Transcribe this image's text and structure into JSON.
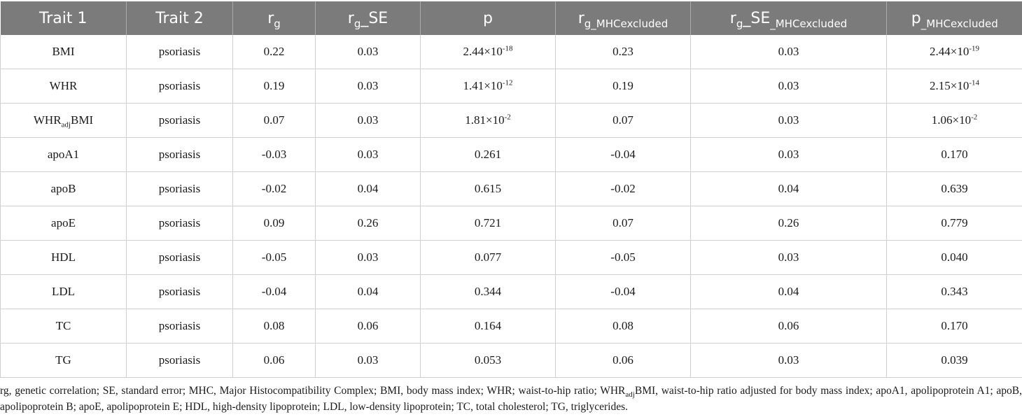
{
  "table": {
    "headers": {
      "trait1": "Trait 1",
      "trait2": "Trait 2",
      "rg": {
        "base": "r",
        "sub": "g"
      },
      "rg_se": {
        "base": "r",
        "sub": "g",
        "rest": "_SE"
      },
      "p": "p",
      "rg_mhc": {
        "base": "r",
        "sub": "g_MHCexcluded"
      },
      "rg_se_mhc": {
        "base": "r",
        "sub": "g",
        "rest": "_SE",
        "sub2": "_MHCexcluded"
      },
      "p_mhc": {
        "base": "p",
        "sub": "_MHCexcluded"
      }
    },
    "rows": [
      {
        "trait1": {
          "base": "BMI",
          "sub": "",
          "rest": ""
        },
        "trait2": "psoriasis",
        "rg": "0.22",
        "rg_se": "0.03",
        "p": {
          "mant": "2.44×10",
          "exp": "-18"
        },
        "rg_mhc": "0.23",
        "rg_se_mhc": "0.03",
        "p_mhc": {
          "mant": "2.44×10",
          "exp": "-19"
        }
      },
      {
        "trait1": {
          "base": "WHR",
          "sub": "",
          "rest": ""
        },
        "trait2": "psoriasis",
        "rg": "0.19",
        "rg_se": "0.03",
        "p": {
          "mant": "1.41×10",
          "exp": "-12"
        },
        "rg_mhc": "0.19",
        "rg_se_mhc": "0.03",
        "p_mhc": {
          "mant": "2.15×10",
          "exp": "-14"
        }
      },
      {
        "trait1": {
          "base": "WHR",
          "sub": "adj",
          "rest": "BMI"
        },
        "trait2": "psoriasis",
        "rg": "0.07",
        "rg_se": "0.03",
        "p": {
          "mant": "1.81×10",
          "exp": "-2"
        },
        "rg_mhc": "0.07",
        "rg_se_mhc": "0.03",
        "p_mhc": {
          "mant": "1.06×10",
          "exp": "-2"
        }
      },
      {
        "trait1": {
          "base": "apoA1",
          "sub": "",
          "rest": ""
        },
        "trait2": "psoriasis",
        "rg": "-0.03",
        "rg_se": "0.03",
        "p": {
          "mant": "0.261",
          "exp": ""
        },
        "rg_mhc": "-0.04",
        "rg_se_mhc": "0.03",
        "p_mhc": {
          "mant": "0.170",
          "exp": ""
        }
      },
      {
        "trait1": {
          "base": "apoB",
          "sub": "",
          "rest": ""
        },
        "trait2": "psoriasis",
        "rg": "-0.02",
        "rg_se": "0.04",
        "p": {
          "mant": "0.615",
          "exp": ""
        },
        "rg_mhc": "-0.02",
        "rg_se_mhc": "0.04",
        "p_mhc": {
          "mant": "0.639",
          "exp": ""
        }
      },
      {
        "trait1": {
          "base": "apoE",
          "sub": "",
          "rest": ""
        },
        "trait2": "psoriasis",
        "rg": "0.09",
        "rg_se": "0.26",
        "p": {
          "mant": "0.721",
          "exp": ""
        },
        "rg_mhc": "0.07",
        "rg_se_mhc": "0.26",
        "p_mhc": {
          "mant": "0.779",
          "exp": ""
        }
      },
      {
        "trait1": {
          "base": "HDL",
          "sub": "",
          "rest": ""
        },
        "trait2": "psoriasis",
        "rg": "-0.05",
        "rg_se": "0.03",
        "p": {
          "mant": "0.077",
          "exp": ""
        },
        "rg_mhc": "-0.05",
        "rg_se_mhc": "0.03",
        "p_mhc": {
          "mant": "0.040",
          "exp": ""
        }
      },
      {
        "trait1": {
          "base": "LDL",
          "sub": "",
          "rest": ""
        },
        "trait2": "psoriasis",
        "rg": "-0.04",
        "rg_se": "0.04",
        "p": {
          "mant": "0.344",
          "exp": ""
        },
        "rg_mhc": "-0.04",
        "rg_se_mhc": "0.04",
        "p_mhc": {
          "mant": "0.343",
          "exp": ""
        }
      },
      {
        "trait1": {
          "base": "TC",
          "sub": "",
          "rest": ""
        },
        "trait2": "psoriasis",
        "rg": "0.08",
        "rg_se": "0.06",
        "p": {
          "mant": "0.164",
          "exp": ""
        },
        "rg_mhc": "0.08",
        "rg_se_mhc": "0.06",
        "p_mhc": {
          "mant": "0.170",
          "exp": ""
        }
      },
      {
        "trait1": {
          "base": "TG",
          "sub": "",
          "rest": ""
        },
        "trait2": "psoriasis",
        "rg": "0.06",
        "rg_se": "0.03",
        "p": {
          "mant": "0.053",
          "exp": ""
        },
        "rg_mhc": "0.06",
        "rg_se_mhc": "0.03",
        "p_mhc": {
          "mant": "0.039",
          "exp": ""
        }
      }
    ]
  },
  "footnote": {
    "part1": "rg, genetic correlation; SE, standard error; MHC, Major Histocompatibility Complex; BMI, body mass index; WHR; waist-to-hip ratio; WHR",
    "sub": "adj",
    "part2": "BMI, waist-to-hip ratio adjusted for body mass index; apoA1, apolipoprotein A1; apoB, apolipoprotein B; apoE, apolipoprotein E; HDL, high-density lipoprotein; LDL, low-density lipoprotein; TC, total cholesterol; TG, triglycerides."
  },
  "colors": {
    "header_bg": "#7b7b7b",
    "header_text": "#ffffff",
    "grid_line": "#d0d0d0"
  }
}
